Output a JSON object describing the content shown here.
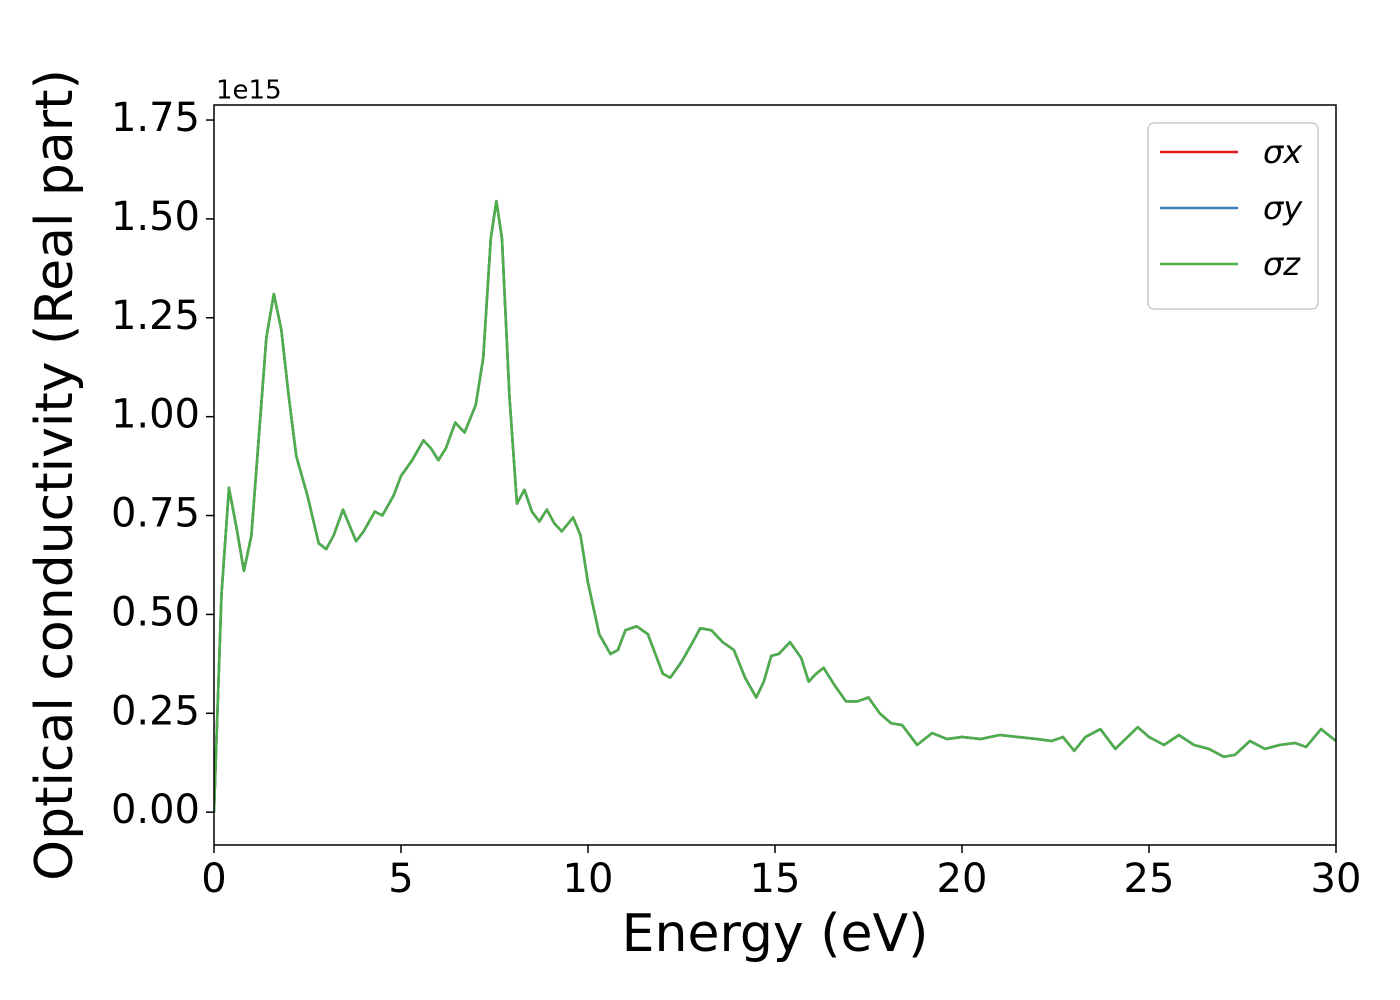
{
  "chart_data": {
    "type": "line",
    "xlabel": "Energy (eV)",
    "ylabel": "Optical conductivity (Real part)",
    "offset_text": "1e15",
    "x": [
      0,
      0.2,
      0.4,
      0.6,
      0.8,
      1.0,
      1.2,
      1.4,
      1.6,
      1.8,
      2.0,
      2.2,
      2.5,
      2.8,
      3.0,
      3.2,
      3.45,
      3.6,
      3.8,
      4.0,
      4.3,
      4.5,
      4.8,
      5.0,
      5.3,
      5.6,
      5.8,
      6.0,
      6.2,
      6.45,
      6.7,
      7.0,
      7.2,
      7.4,
      7.55,
      7.7,
      7.9,
      8.1,
      8.3,
      8.5,
      8.7,
      8.9,
      9.1,
      9.3,
      9.6,
      9.8,
      10.0,
      10.3,
      10.6,
      10.8,
      11.0,
      11.3,
      11.6,
      11.8,
      12.0,
      12.2,
      12.5,
      12.8,
      13.0,
      13.3,
      13.6,
      13.9,
      14.2,
      14.5,
      14.7,
      14.9,
      15.1,
      15.4,
      15.7,
      15.9,
      16.1,
      16.3,
      16.6,
      16.9,
      17.2,
      17.5,
      17.8,
      18.1,
      18.4,
      18.8,
      19.2,
      19.6,
      20.0,
      20.5,
      21.0,
      21.5,
      22.0,
      22.4,
      22.7,
      23.0,
      23.3,
      23.7,
      24.1,
      24.7,
      25.0,
      25.4,
      25.8,
      26.2,
      26.6,
      27.0,
      27.3,
      27.7,
      28.1,
      28.5,
      28.9,
      29.2,
      29.6,
      30.0
    ],
    "series": [
      {
        "name": "σx",
        "color": "#e41a1c",
        "values": [
          0.0,
          0.55,
          0.82,
          0.72,
          0.61,
          0.7,
          0.95,
          1.2,
          1.31,
          1.22,
          1.05,
          0.9,
          0.8,
          0.68,
          0.665,
          0.7,
          0.765,
          0.73,
          0.685,
          0.71,
          0.76,
          0.75,
          0.8,
          0.85,
          0.89,
          0.94,
          0.92,
          0.89,
          0.92,
          0.985,
          0.96,
          1.03,
          1.15,
          1.45,
          1.545,
          1.45,
          1.05,
          0.78,
          0.815,
          0.76,
          0.735,
          0.765,
          0.73,
          0.71,
          0.745,
          0.7,
          0.58,
          0.45,
          0.4,
          0.41,
          0.46,
          0.47,
          0.45,
          0.4,
          0.35,
          0.34,
          0.38,
          0.43,
          0.465,
          0.46,
          0.43,
          0.41,
          0.34,
          0.29,
          0.33,
          0.395,
          0.4,
          0.43,
          0.39,
          0.33,
          0.35,
          0.365,
          0.32,
          0.28,
          0.28,
          0.29,
          0.25,
          0.225,
          0.22,
          0.17,
          0.2,
          0.185,
          0.19,
          0.185,
          0.195,
          0.19,
          0.185,
          0.18,
          0.19,
          0.155,
          0.19,
          0.21,
          0.16,
          0.215,
          0.19,
          0.17,
          0.195,
          0.17,
          0.16,
          0.14,
          0.145,
          0.18,
          0.16,
          0.17,
          0.175,
          0.165,
          0.21,
          0.18
        ]
      },
      {
        "name": "σy",
        "color": "#377eb8",
        "values": [
          0.0,
          0.55,
          0.82,
          0.72,
          0.61,
          0.7,
          0.95,
          1.2,
          1.31,
          1.22,
          1.05,
          0.9,
          0.8,
          0.68,
          0.665,
          0.7,
          0.765,
          0.73,
          0.685,
          0.71,
          0.76,
          0.75,
          0.8,
          0.85,
          0.89,
          0.94,
          0.92,
          0.89,
          0.92,
          0.985,
          0.96,
          1.03,
          1.15,
          1.45,
          1.545,
          1.45,
          1.05,
          0.78,
          0.815,
          0.76,
          0.735,
          0.765,
          0.73,
          0.71,
          0.745,
          0.7,
          0.58,
          0.45,
          0.4,
          0.41,
          0.46,
          0.47,
          0.45,
          0.4,
          0.35,
          0.34,
          0.38,
          0.43,
          0.465,
          0.46,
          0.43,
          0.41,
          0.34,
          0.29,
          0.33,
          0.395,
          0.4,
          0.43,
          0.39,
          0.33,
          0.35,
          0.365,
          0.32,
          0.28,
          0.28,
          0.29,
          0.25,
          0.225,
          0.22,
          0.17,
          0.2,
          0.185,
          0.19,
          0.185,
          0.195,
          0.19,
          0.185,
          0.18,
          0.19,
          0.155,
          0.19,
          0.21,
          0.16,
          0.215,
          0.19,
          0.17,
          0.195,
          0.17,
          0.16,
          0.14,
          0.145,
          0.18,
          0.16,
          0.17,
          0.175,
          0.165,
          0.21,
          0.18
        ]
      },
      {
        "name": "σz",
        "color": "#4daf4a",
        "values": [
          0.0,
          0.55,
          0.82,
          0.72,
          0.61,
          0.7,
          0.95,
          1.2,
          1.31,
          1.22,
          1.05,
          0.9,
          0.8,
          0.68,
          0.665,
          0.7,
          0.765,
          0.73,
          0.685,
          0.71,
          0.76,
          0.75,
          0.8,
          0.85,
          0.89,
          0.94,
          0.92,
          0.89,
          0.92,
          0.985,
          0.96,
          1.03,
          1.15,
          1.45,
          1.545,
          1.45,
          1.05,
          0.78,
          0.815,
          0.76,
          0.735,
          0.765,
          0.73,
          0.71,
          0.745,
          0.7,
          0.58,
          0.45,
          0.4,
          0.41,
          0.46,
          0.47,
          0.45,
          0.4,
          0.35,
          0.34,
          0.38,
          0.43,
          0.465,
          0.46,
          0.43,
          0.41,
          0.34,
          0.29,
          0.33,
          0.395,
          0.4,
          0.43,
          0.39,
          0.33,
          0.35,
          0.365,
          0.32,
          0.28,
          0.28,
          0.29,
          0.25,
          0.225,
          0.22,
          0.17,
          0.2,
          0.185,
          0.19,
          0.185,
          0.195,
          0.19,
          0.185,
          0.18,
          0.19,
          0.155,
          0.19,
          0.21,
          0.16,
          0.215,
          0.19,
          0.17,
          0.195,
          0.17,
          0.16,
          0.14,
          0.145,
          0.18,
          0.16,
          0.17,
          0.175,
          0.165,
          0.21,
          0.18
        ]
      }
    ],
    "xlim": [
      0,
      30
    ],
    "xticks": [
      0,
      5,
      10,
      15,
      20,
      25,
      30
    ],
    "ylim": [
      -0.083,
      1.788
    ],
    "yticks": [
      {
        "value": 0,
        "label": "0.00"
      },
      {
        "value": 0.25,
        "label": "0.25"
      },
      {
        "value": 0.5,
        "label": "0.50"
      },
      {
        "value": 0.75,
        "label": "0.75"
      },
      {
        "value": 1.0,
        "label": "1.00"
      },
      {
        "value": 1.25,
        "label": "1.25"
      },
      {
        "value": 1.5,
        "label": "1.50"
      },
      {
        "value": 1.75,
        "label": "1.75"
      }
    ],
    "grid": false,
    "legend": "upper right"
  }
}
